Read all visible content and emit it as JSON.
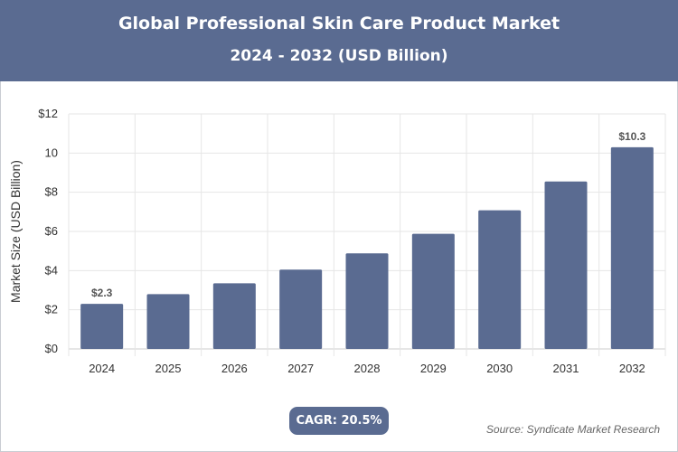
{
  "header": {
    "title": "Global Professional Skin Care Product Market",
    "subtitle": "2024 - 2032 (USD Billion)"
  },
  "chart_data": {
    "type": "bar",
    "title": "Global Professional Skin Care Product Market",
    "subtitle": "2024 - 2032 (USD Billion)",
    "categories": [
      "2024",
      "2025",
      "2026",
      "2027",
      "2028",
      "2029",
      "2030",
      "2031",
      "2032"
    ],
    "values": [
      2.3,
      2.8,
      3.35,
      4.05,
      4.88,
      5.88,
      7.08,
      8.55,
      10.3
    ],
    "data_labels": [
      {
        "index": 0,
        "text": "$2.3"
      },
      {
        "index": 8,
        "text": "$10.3"
      }
    ],
    "xlabel": "",
    "ylabel": "Market Size (USD Billion)",
    "ylim": [
      0,
      12
    ],
    "yticks": [
      {
        "value": 0,
        "label": "$0"
      },
      {
        "value": 2,
        "label": "$2"
      },
      {
        "value": 4,
        "label": "$4"
      },
      {
        "value": 6,
        "label": "$6"
      },
      {
        "value": 8,
        "label": "$8"
      },
      {
        "value": 10,
        "label": "10"
      },
      {
        "value": 12,
        "label": "$12"
      }
    ],
    "grid": true,
    "bar_color": "#5a6b91"
  },
  "footer": {
    "cagr": "CAGR: 20.5%",
    "source": "Source: Syndicate Market Research"
  }
}
